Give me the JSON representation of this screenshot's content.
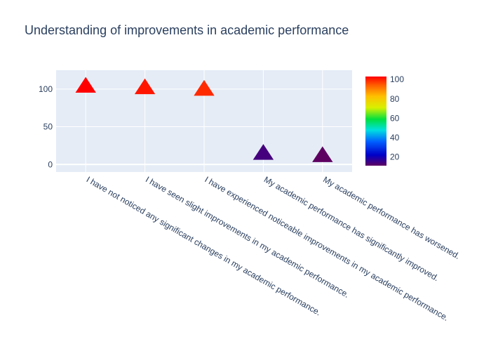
{
  "chart_data": {
    "type": "scatter",
    "title": "Understanding of improvements in academic performance",
    "xlabel": "",
    "ylabel": "",
    "categories": [
      "I have not noticed any significant changes in my academic performance.",
      "I have seen slight improvements in my academic performance.",
      "I have experienced noticeable improvements in my academic performance.",
      "My academic performance has significantly improved.",
      "My academic performance has worsened."
    ],
    "values": [
      103,
      101,
      99,
      14,
      11
    ],
    "marker": "triangle-up",
    "ylim": [
      -10,
      125
    ],
    "yticks": [
      0,
      50,
      100
    ],
    "grid": true,
    "colorbar": {
      "colorscale": "rainbow",
      "range": [
        11,
        103
      ],
      "ticks": [
        20,
        40,
        60,
        80,
        100
      ]
    },
    "colors": {
      "plot_bg": "#e5ecf6",
      "text": "#2a3f5f",
      "grid": "#ffffff"
    }
  }
}
